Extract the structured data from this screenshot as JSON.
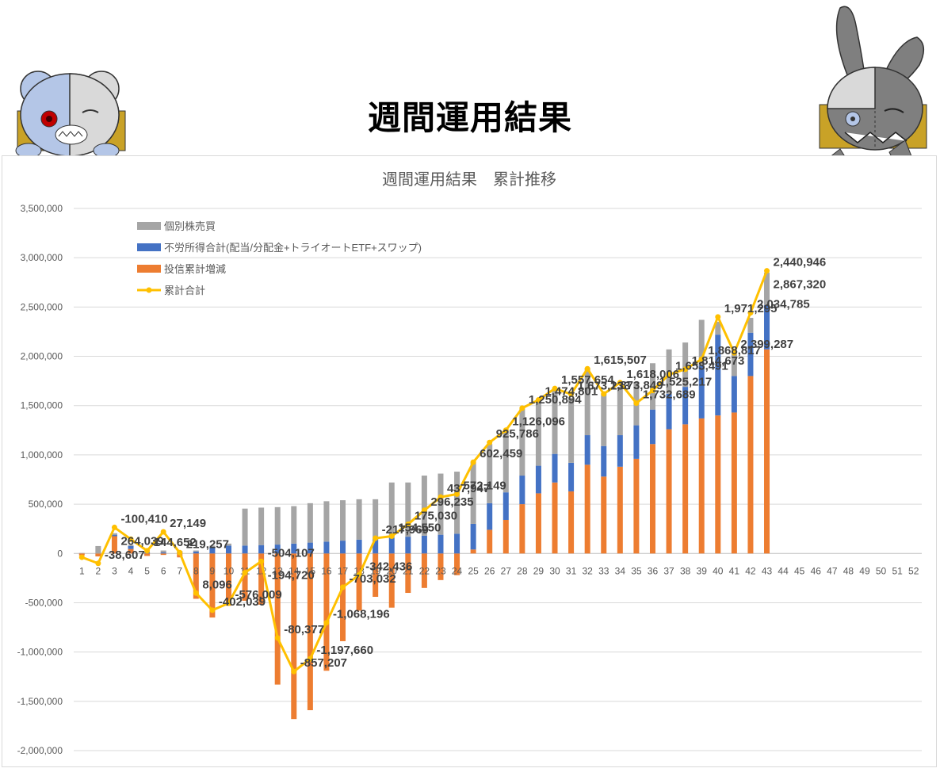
{
  "page": {
    "heading": "週間運用結果"
  },
  "colors": {
    "stock": "#a5a5a5",
    "income": "#4472c4",
    "fund": "#ed7d31",
    "cumulative": "#ffc000",
    "grid": "#d9d9d9",
    "text": "#595959",
    "label": "#404040"
  },
  "chart_data": {
    "type": "bar",
    "title": "週間運用結果　累計推移",
    "xlabel": "",
    "ylabel": "",
    "ylim": [
      -2000000,
      3500000
    ],
    "y_ticks": [
      3500000,
      3000000,
      2500000,
      2000000,
      1500000,
      1000000,
      500000,
      0,
      -500000,
      -1000000,
      -1500000,
      -2000000
    ],
    "y_tick_labels": [
      "3,500,000",
      "3,000,000",
      "2,500,000",
      "2,000,000",
      "1,500,000",
      "1,000,000",
      "500,000",
      "0",
      "-500,000",
      "-1,000,000",
      "-1,500,000",
      "-2,000,000"
    ],
    "grid": true,
    "legend_position": "top-left",
    "categories": [
      "1",
      "2",
      "3",
      "4",
      "5",
      "6",
      "7",
      "8",
      "9",
      "10",
      "11",
      "12",
      "13",
      "14",
      "15",
      "16",
      "17",
      "18",
      "19",
      "20",
      "21",
      "22",
      "23",
      "24",
      "25",
      "26",
      "27",
      "28",
      "29",
      "30",
      "31",
      "32",
      "33",
      "34",
      "35",
      "36",
      "37",
      "38",
      "39",
      "40",
      "41",
      "42",
      "43",
      "44",
      "45",
      "46",
      "47",
      "48",
      "49",
      "50",
      "51",
      "52"
    ],
    "series": [
      {
        "name": "個別株売買",
        "kind": "stacked-bar",
        "values": [
          5000,
          75000,
          15000,
          10000,
          5000,
          20000,
          10000,
          10000,
          20000,
          20000,
          375000,
          380000,
          380000,
          380000,
          400000,
          410000,
          410000,
          410000,
          400000,
          560000,
          550000,
          610000,
          620000,
          630000,
          625000,
          600000,
          620000,
          680000,
          650000,
          650000,
          660000,
          680000,
          530000,
          490000,
          440000,
          470000,
          450000,
          450000,
          460000,
          130000,
          220000,
          150000,
          330000,
          null,
          null,
          null,
          null,
          null,
          null,
          null,
          null,
          null
        ]
      },
      {
        "name": "不労所得合計(配当/分配金+トライオートETF+スワップ)",
        "kind": "stacked-bar",
        "values": [
          0,
          0,
          15000,
          30000,
          10000,
          10000,
          15000,
          20000,
          60000,
          80000,
          80000,
          85000,
          90000,
          100000,
          110000,
          120000,
          130000,
          140000,
          150000,
          160000,
          170000,
          180000,
          190000,
          200000,
          260000,
          270000,
          280000,
          290000,
          280000,
          290000,
          290000,
          300000,
          310000,
          320000,
          340000,
          350000,
          360000,
          380000,
          540000,
          820000,
          370000,
          440000,
          450000,
          null,
          null,
          null,
          null,
          null,
          null,
          null,
          null,
          null
        ]
      },
      {
        "name": "投信累計増減",
        "kind": "stacked-bar",
        "values": [
          -20000,
          -30000,
          175000,
          45000,
          -25000,
          -15000,
          -40000,
          -460000,
          -650000,
          -530000,
          -480000,
          -520000,
          -1330000,
          -1680000,
          -1590000,
          -1190000,
          -890000,
          -580000,
          -440000,
          -550000,
          -400000,
          -350000,
          -270000,
          -220000,
          40000,
          240000,
          340000,
          500000,
          610000,
          720000,
          630000,
          900000,
          780000,
          880000,
          960000,
          1110000,
          1260000,
          1310000,
          1370000,
          1400000,
          1430000,
          1800000,
          2070000,
          null,
          null,
          null,
          null,
          null,
          null,
          null,
          null,
          null
        ]
      },
      {
        "name": "累計合計",
        "kind": "line",
        "values": [
          -38607,
          -100410,
          264039,
          144652,
          27149,
          219257,
          8096,
          -402039,
          -576009,
          -504107,
          -194720,
          -80377,
          -857207,
          -1197660,
          -1068196,
          -703032,
          -342436,
          -217969,
          154550,
          175030,
          296235,
          437947,
          572149,
          602459,
          925786,
          1126096,
          1250894,
          1474801,
          1557654,
          1673233,
          1615507,
          1873849,
          1618006,
          1732689,
          1525217,
          1653491,
          1814673,
          1868817,
          1971295,
          2399287,
          2034785,
          2440946,
          2867320,
          null,
          null,
          null,
          null,
          null,
          null,
          null,
          null,
          null
        ]
      }
    ],
    "data_labels": [
      {
        "category": "2",
        "text": "-38,607"
      },
      {
        "category": "3",
        "text": "-100,410"
      },
      {
        "category": "3",
        "text": "264,039"
      },
      {
        "category": "5",
        "text": "144,652"
      },
      {
        "category": "6",
        "text": "27,149"
      },
      {
        "category": "7",
        "text": "219,257"
      },
      {
        "category": "8",
        "text": "8,096"
      },
      {
        "category": "9",
        "text": "-402,039"
      },
      {
        "category": "10",
        "text": "-576,009"
      },
      {
        "category": "12",
        "text": "-504,107"
      },
      {
        "category": "12",
        "text": "-194,720"
      },
      {
        "category": "13",
        "text": "-80,377"
      },
      {
        "category": "14",
        "text": "-857,207"
      },
      {
        "category": "15",
        "text": "-1,197,660"
      },
      {
        "category": "16",
        "text": "-1,068,196"
      },
      {
        "category": "17",
        "text": "-703,032"
      },
      {
        "category": "18",
        "text": "-342,436"
      },
      {
        "category": "19",
        "text": "-217,969"
      },
      {
        "category": "20",
        "text": "154,550"
      },
      {
        "category": "21",
        "text": "175,030"
      },
      {
        "category": "22",
        "text": "296,235"
      },
      {
        "category": "23",
        "text": "437,947"
      },
      {
        "category": "24",
        "text": "572,149"
      },
      {
        "category": "25",
        "text": "602,459"
      },
      {
        "category": "26",
        "text": "925,786"
      },
      {
        "category": "27",
        "text": "1,126,096"
      },
      {
        "category": "28",
        "text": "1,250,894"
      },
      {
        "category": "29",
        "text": "1,474,801"
      },
      {
        "category": "30",
        "text": "1,557,654"
      },
      {
        "category": "31",
        "text": "1,673,233"
      },
      {
        "category": "32",
        "text": "1,615,507"
      },
      {
        "category": "33",
        "text": "1,873,849"
      },
      {
        "category": "34",
        "text": "1,618,006"
      },
      {
        "category": "35",
        "text": "1,732,689"
      },
      {
        "category": "36",
        "text": "1,525,217"
      },
      {
        "category": "37",
        "text": "1,653,491"
      },
      {
        "category": "38",
        "text": "1,814,673"
      },
      {
        "category": "39",
        "text": "1,868,817"
      },
      {
        "category": "40",
        "text": "1,971,295"
      },
      {
        "category": "41",
        "text": "2,399,287"
      },
      {
        "category": "42",
        "text": "2,034,785"
      },
      {
        "category": "43",
        "text": "2,440,946"
      },
      {
        "category": "43",
        "text": "2,867,320"
      }
    ]
  }
}
